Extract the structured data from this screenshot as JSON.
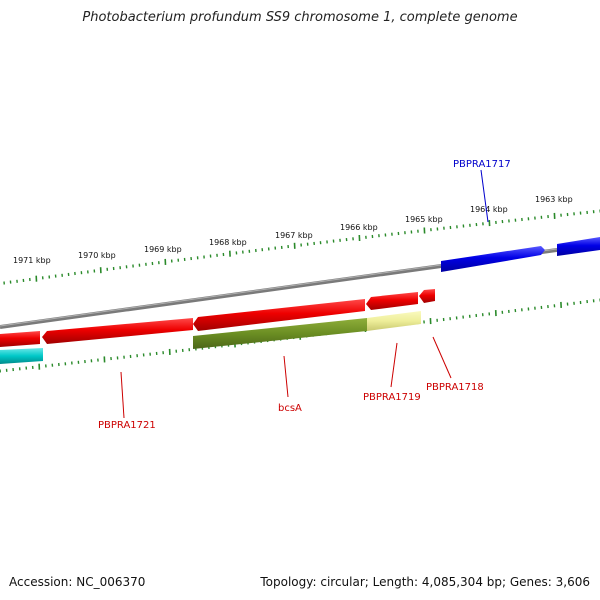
{
  "title": "Photobacterium profundum SS9 chromosome 1, complete genome",
  "footer": {
    "accession": "Accession: NC_006370",
    "topology": "Topology: circular; Length: 4,085,304 bp; Genes: 3,606"
  },
  "colors": {
    "backbone": "#8a8a8a",
    "tick": "#2a8a2a",
    "forward_gene": "#0000ee",
    "reverse_gene": "#ee0000",
    "bcsA_gene": "#6b8e23",
    "pale_gene": "#eeee99",
    "teal_gene": "#00c0c0",
    "label_blue": "#0000cc",
    "label_red": "#cc0000"
  },
  "kbp_labels": [
    "1971 kbp",
    "1970 kbp",
    "1969 kbp",
    "1968 kbp",
    "1967 kbp",
    "1966 kbp",
    "1965 kbp",
    "1964 kbp",
    "1963 kbp"
  ],
  "gene_labels": {
    "pbpra1717": "PBPRA1717",
    "pbpra1721": "PBPRA1721",
    "bcsA": "bcsA",
    "pbpra1719": "PBPRA1719",
    "pbpra1718": "PBPRA1718"
  }
}
